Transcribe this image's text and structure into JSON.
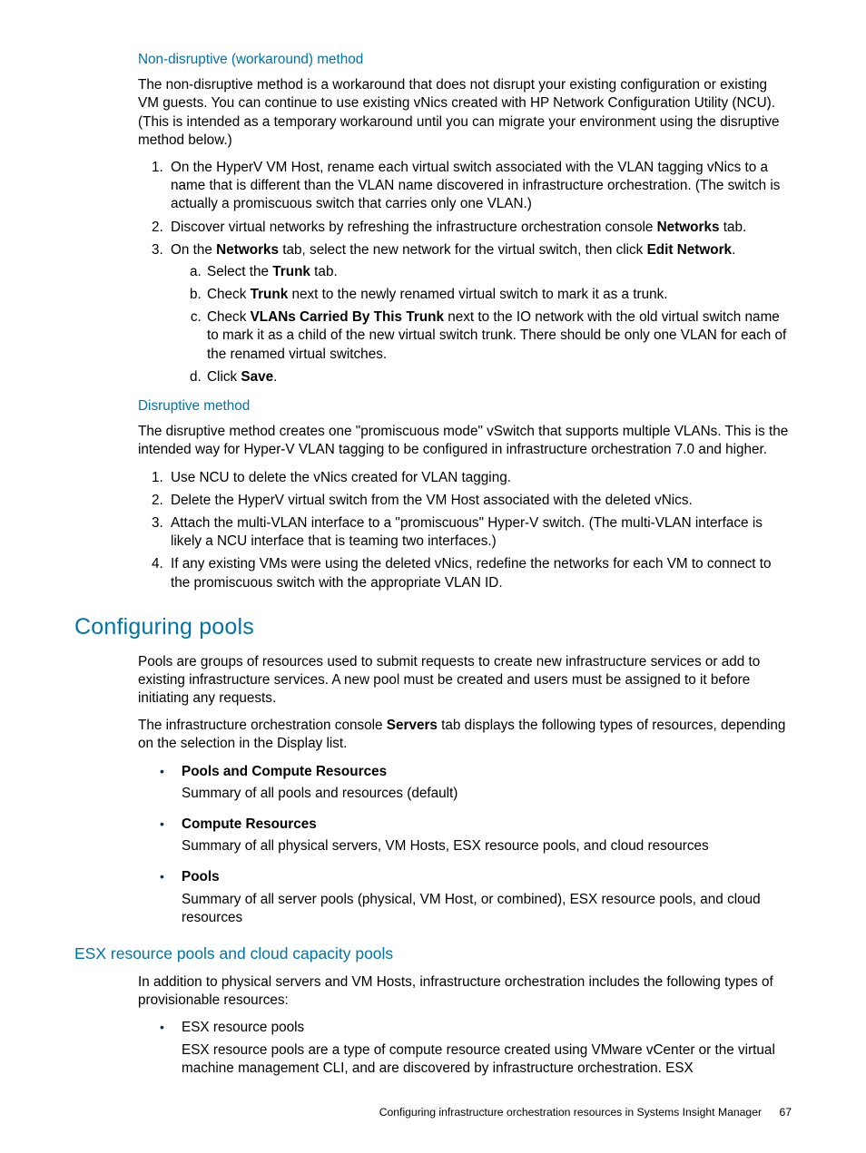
{
  "section1": {
    "heading": "Non-disruptive (workaround) method",
    "intro": "The non-disruptive method is a workaround that does not disrupt your existing configuration or existing VM guests. You can continue to use existing vNics created with HP Network Configuration Utility (NCU). (This is intended as a temporary workaround until you can migrate your environment using the disruptive method below.)",
    "step1": "On the HyperV VM Host, rename each virtual switch associated with the VLAN tagging vNics to a name that is different than the VLAN name discovered in infrastructure orchestration. (The switch is actually a promiscuous switch that carries only one VLAN.)",
    "step2_a": "Discover virtual networks by refreshing the infrastructure orchestration console ",
    "step2_b": "Networks",
    "step2_c": " tab.",
    "step3_a": "On the ",
    "step3_b": "Networks",
    "step3_c": " tab, select the new network for the virtual switch, then click ",
    "step3_d": "Edit Network",
    "step3_e": ".",
    "step3a_a": "Select the ",
    "step3a_b": "Trunk",
    "step3a_c": " tab.",
    "step3b_a": "Check ",
    "step3b_b": "Trunk",
    "step3b_c": " next to the newly renamed virtual switch to mark it as a trunk.",
    "step3c_a": "Check ",
    "step3c_b": "VLANs Carried By This Trunk",
    "step3c_c": " next to the IO network with the old virtual switch name to mark it as a child of the new virtual switch trunk. There should be only one VLAN for each of the renamed virtual switches.",
    "step3d_a": "Click ",
    "step3d_b": "Save",
    "step3d_c": "."
  },
  "section2": {
    "heading": "Disruptive method",
    "intro": "The disruptive method creates one \"promiscuous mode\" vSwitch that supports multiple VLANs. This is the intended way for Hyper-V VLAN tagging to be configured in infrastructure orchestration 7.0 and higher.",
    "step1": "Use NCU to delete the vNics created for VLAN tagging.",
    "step2": "Delete the HyperV virtual switch from the VM Host associated with the deleted vNics.",
    "step3": "Attach the multi-VLAN interface to a \"promiscuous\" Hyper-V switch. (The multi-VLAN interface is likely a NCU interface that is teaming two interfaces.)",
    "step4": "If any existing VMs were using the deleted vNics, redefine the networks for each VM to connect to the promiscuous switch with the appropriate VLAN ID."
  },
  "section3": {
    "heading": "Configuring pools",
    "para1": "Pools are groups of resources used to submit requests to create new infrastructure services or add to existing infrastructure services. A new pool must be created and users must be assigned to it before initiating any requests.",
    "para2_a": "The infrastructure orchestration console ",
    "para2_b": "Servers",
    "para2_c": " tab displays the following types of resources, depending on the selection in the Display list.",
    "b1_head": "Pools and Compute Resources",
    "b1_body": "Summary of all pools and resources (default)",
    "b2_head": "Compute Resources",
    "b2_body": "Summary of all physical servers, VM Hosts, ESX resource pools, and cloud resources",
    "b3_head": "Pools",
    "b3_body": "Summary of all server pools (physical, VM Host, or combined), ESX resource pools, and cloud resources"
  },
  "section4": {
    "heading": "ESX resource pools and cloud capacity pools",
    "para1": "In addition to physical servers and VM Hosts, infrastructure orchestration includes the following types of provisionable resources:",
    "b1_head": "ESX resource pools",
    "b1_body": "ESX resource pools are a type of compute resource created using VMware vCenter or the virtual machine management CLI, and are discovered by infrastructure orchestration. ESX"
  },
  "footer": {
    "text": "Configuring infrastructure orchestration resources in Systems Insight Manager",
    "page": "67"
  }
}
